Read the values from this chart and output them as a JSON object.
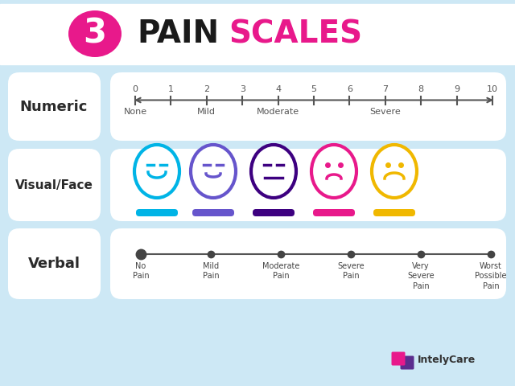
{
  "bg_color": "#cde8f5",
  "title_3_bg": "#e8198b",
  "title_pain_color": "#1a1a1a",
  "title_scales_color": "#e8198b",
  "label_color": "#2a2a2a",
  "face_colors": [
    "#00b4e6",
    "#6655cc",
    "#3d0080",
    "#e8198b",
    "#f0b800"
  ],
  "bar_colors": [
    "#00b4e6",
    "#6655cc",
    "#3d0080",
    "#e8198b",
    "#f0b800"
  ],
  "numeric_label_texts": [
    "None",
    "Mild",
    "Moderate",
    "Severe"
  ],
  "numeric_label_idxs": [
    0,
    2,
    4,
    7
  ],
  "verbal_labels": [
    "No\nPain",
    "Mild\nPain",
    "Moderate\nPain",
    "Severe\nPain",
    "Very\nSevere\nPain",
    "Worst\nPossible\nPain"
  ],
  "intelycare_pink": "#e8198b",
  "intelycare_purple": "#5b2d8e"
}
